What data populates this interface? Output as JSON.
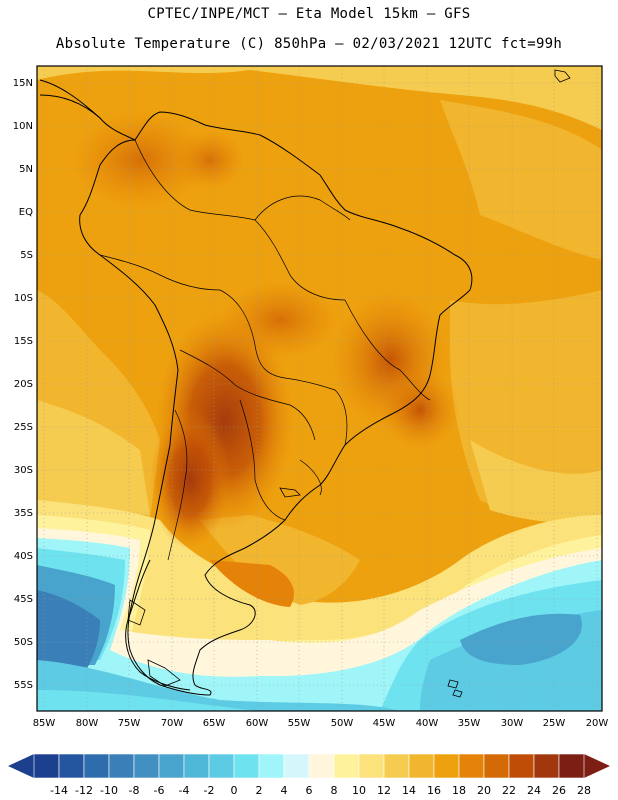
{
  "header": {
    "line1": "CPTEC/INPE/MCT –  Eta Model 15km – GFS",
    "line2": "Absolute Temperature (C) 850hPa – 02/03/2021 12UTC fct=99h"
  },
  "map": {
    "lon_labels": [
      "85W",
      "80W",
      "75W",
      "70W",
      "65W",
      "60W",
      "55W",
      "50W",
      "45W",
      "40W",
      "35W",
      "30W",
      "25W",
      "20W"
    ],
    "lat_labels": [
      "15N",
      "10N",
      "5N",
      "EQ",
      "5S",
      "10S",
      "15S",
      "20S",
      "25S",
      "30S",
      "35S",
      "40S",
      "45S",
      "50S",
      "55S"
    ]
  },
  "colorbar": {
    "labels": [
      "-14",
      "-12",
      "-10",
      "-8",
      "-6",
      "-4",
      "-2",
      "0",
      "2",
      "4",
      "6",
      "8",
      "10",
      "12",
      "14",
      "16",
      "18",
      "20",
      "22",
      "24",
      "26",
      "28"
    ],
    "colors": [
      "#1c3f8e",
      "#2456a0",
      "#2f6cad",
      "#3a7fb8",
      "#4290c2",
      "#48a4cc",
      "#4fb7d8",
      "#5ccbe3",
      "#6fe2ef",
      "#9ff5f7",
      "#d4f7fb",
      "#fff6dc",
      "#fff29d",
      "#fbe27a",
      "#f5cc4f",
      "#f1b52e",
      "#eea10e",
      "#e58308",
      "#d36a06",
      "#c04d05",
      "#a1370d",
      "#7d1e14"
    ]
  }
}
